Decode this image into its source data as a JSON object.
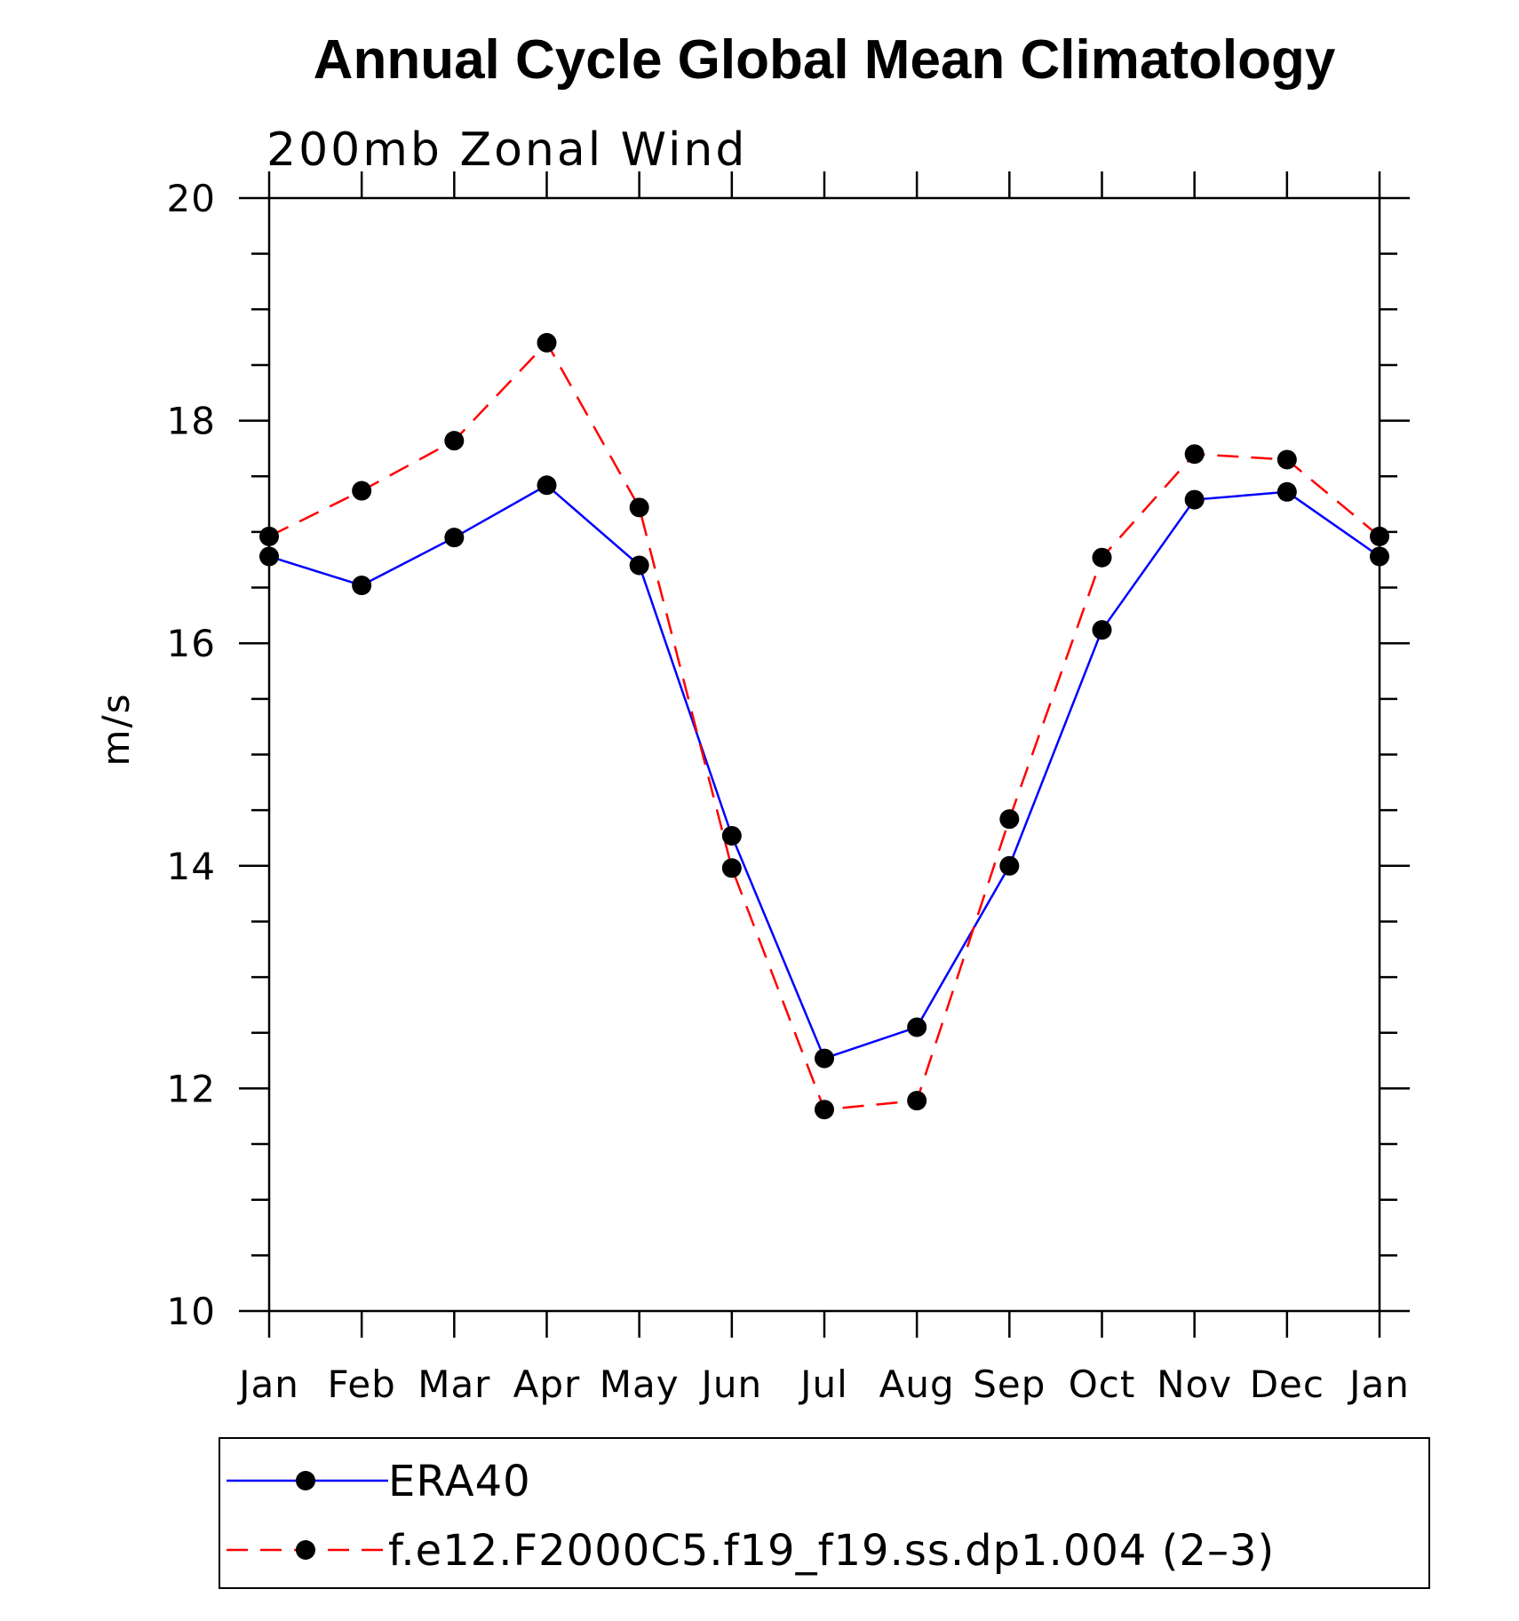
{
  "chart_data": {
    "type": "line",
    "title": "Annual Cycle Global Mean Climatology",
    "subtitle": "200mb  Zonal  Wind",
    "ylabel": "m/s",
    "xlabel": "",
    "categories": [
      "Jan",
      "Feb",
      "Mar",
      "Apr",
      "May",
      "Jun",
      "Jul",
      "Aug",
      "Sep",
      "Oct",
      "Nov",
      "Dec",
      "Jan"
    ],
    "ylim": [
      10,
      20
    ],
    "yticks": [
      "10",
      "12",
      "14",
      "16",
      "18",
      "20"
    ],
    "grid": false,
    "legend_position": "bottom",
    "series": [
      {
        "name": "ERA40",
        "color": "#0000ff",
        "dash": "solid",
        "marker": "filled-circle",
        "values": [
          16.78,
          16.52,
          16.95,
          17.42,
          16.7,
          14.27,
          12.27,
          12.55,
          14.0,
          16.12,
          17.29,
          17.36,
          16.78
        ]
      },
      {
        "name": "f.e12.F2000C5.f19_f19.ss.dp1.004 (2–3)",
        "color": "#ff0000",
        "dash": "dashed",
        "marker": "filled-circle",
        "values": [
          16.96,
          17.37,
          17.82,
          18.7,
          17.22,
          13.98,
          11.81,
          11.89,
          14.42,
          16.77,
          17.7,
          17.65,
          16.96
        ]
      }
    ]
  }
}
